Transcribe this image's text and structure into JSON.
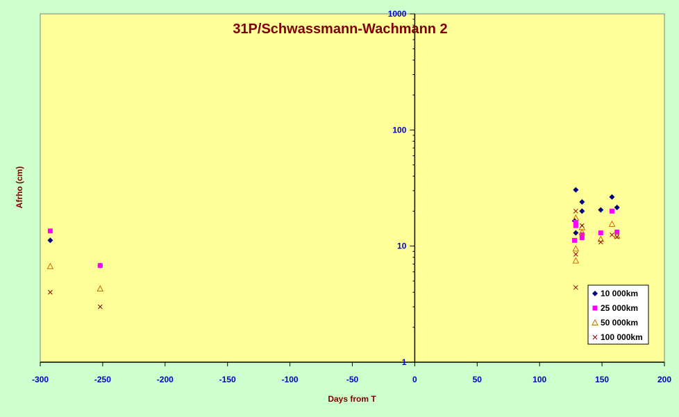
{
  "chart_data": {
    "type": "scatter",
    "title": "31P/Schwassmann-Wachmann 2",
    "xlabel": "Days from T",
    "ylabel": "Afrho (cm)",
    "xlim": [
      -300,
      200
    ],
    "ylim": [
      1,
      1000
    ],
    "yscale": "log",
    "x_ticks": [
      -300,
      -250,
      -200,
      -150,
      -100,
      -50,
      0,
      50,
      100,
      150,
      200
    ],
    "y_ticks": [
      1,
      10,
      100,
      1000
    ],
    "grid": false,
    "legend_position": "bottom-right",
    "series": [
      {
        "name": "10 000km",
        "marker": "diamond",
        "color": "#000080",
        "points": [
          [
            -292,
            11.2
          ],
          [
            -252,
            6.8
          ],
          [
            128,
            16.5
          ],
          [
            129,
            30.5
          ],
          [
            129,
            13
          ],
          [
            134,
            24
          ],
          [
            134,
            20
          ],
          [
            149,
            20.5
          ],
          [
            158,
            26.5
          ],
          [
            162,
            21.5
          ]
        ]
      },
      {
        "name": "25 000km",
        "marker": "square",
        "color": "#ff00ff",
        "points": [
          [
            -292,
            13.5
          ],
          [
            -252,
            6.8
          ],
          [
            128,
            11.2
          ],
          [
            129,
            15
          ],
          [
            129,
            16
          ],
          [
            134,
            11.8
          ],
          [
            134,
            12.5
          ],
          [
            149,
            13
          ],
          [
            158,
            20
          ],
          [
            162,
            13.2
          ]
        ]
      },
      {
        "name": "50 000km",
        "marker": "triangle",
        "color": "#cc6600",
        "points": [
          [
            -292,
            6.7
          ],
          [
            -252,
            4.3
          ],
          [
            129,
            17.5
          ],
          [
            129,
            9.5
          ],
          [
            129,
            7.5
          ],
          [
            134,
            13.2
          ],
          [
            134,
            14.5
          ],
          [
            149,
            11.5
          ],
          [
            158,
            15.5
          ],
          [
            162,
            12.3
          ]
        ]
      },
      {
        "name": "100 000km",
        "marker": "x",
        "color": "#800000",
        "points": [
          [
            -292,
            4.0
          ],
          [
            -252,
            3.0
          ],
          [
            129,
            20
          ],
          [
            129,
            8.5
          ],
          [
            129,
            4.4
          ],
          [
            134,
            15
          ],
          [
            149,
            10.8
          ],
          [
            158,
            12.5
          ],
          [
            162,
            12
          ]
        ]
      }
    ]
  },
  "colors": {
    "page_bg": "#ccffcc",
    "plot_bg": "#ffff99",
    "title": "#800000",
    "axis_title": "#800000",
    "tick_label": "#0000cc",
    "axis_line": "#000000"
  }
}
